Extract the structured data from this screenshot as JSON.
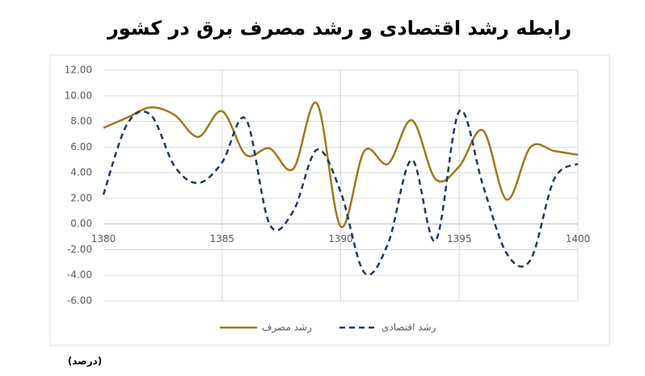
{
  "chart_data": {
    "type": "line",
    "title": "رابطه رشد اقتصادی و رشد مصرف برق در کشور",
    "note": "(درصد)",
    "x": [
      1380,
      1381,
      1382,
      1383,
      1384,
      1385,
      1386,
      1387,
      1388,
      1389,
      1390,
      1391,
      1392,
      1393,
      1394,
      1395,
      1396,
      1397,
      1398,
      1399,
      1400
    ],
    "series": [
      {
        "name": "رشد مصرف",
        "color": "#9c7a1c",
        "dash": false,
        "values": [
          7.5,
          8.3,
          9.1,
          8.5,
          6.8,
          8.8,
          5.4,
          5.9,
          4.3,
          9.4,
          -0.2,
          5.7,
          4.7,
          8.1,
          3.5,
          4.5,
          7.3,
          1.9,
          6.0,
          5.7,
          5.4
        ]
      },
      {
        "name": "رشد اقتصادی",
        "color": "#1f3864",
        "dash": true,
        "values": [
          2.3,
          7.8,
          8.5,
          4.5,
          3.2,
          4.8,
          8.2,
          0.0,
          1.0,
          5.8,
          2.5,
          -3.8,
          -1.5,
          5.0,
          -1.3,
          8.8,
          3.0,
          -2.3,
          -2.8,
          3.5,
          4.7
        ]
      }
    ],
    "xlim": [
      1380,
      1400
    ],
    "xticks": [
      1380,
      1385,
      1390,
      1395,
      1400
    ],
    "ylim": [
      -6,
      12
    ],
    "yticks": [
      {
        "value": -6,
        "label": "-6.00"
      },
      {
        "value": -4,
        "label": "-4.00"
      },
      {
        "value": -2,
        "label": "-2.00"
      },
      {
        "value": 0,
        "label": "0.00"
      },
      {
        "value": 2,
        "label": "2.00"
      },
      {
        "value": 4,
        "label": "4.00"
      },
      {
        "value": 6,
        "label": "6.00"
      },
      {
        "value": 8,
        "label": "8.00"
      },
      {
        "value": 10,
        "label": "10.00"
      },
      {
        "value": 12,
        "label": "12.00"
      }
    ],
    "grid": true,
    "legend": "bottom"
  }
}
